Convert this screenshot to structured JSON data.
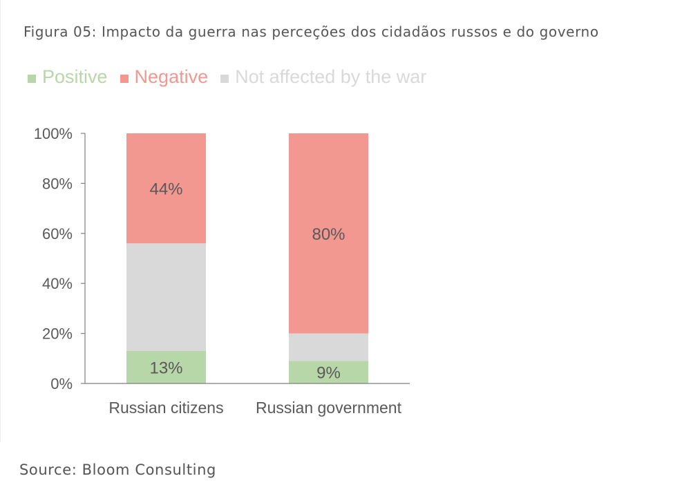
{
  "title": "Figura 05: Impacto da guerra nas perceções dos cidadãos russos e do governo",
  "source": "Source: Bloom Consulting",
  "legend": [
    {
      "label": "Positive",
      "color": "#b7d7a8"
    },
    {
      "label": "Negative",
      "color": "#f29891"
    },
    {
      "label": "Not affected by the war",
      "color": "#d9d9d9"
    }
  ],
  "chart_data": {
    "type": "bar",
    "stacked": true,
    "categories": [
      "Russian citizens",
      "Russian government"
    ],
    "series": [
      {
        "name": "Positive",
        "values": [
          13,
          9
        ],
        "color": "#b7d7a8",
        "data_labels": [
          "13%",
          "9%"
        ]
      },
      {
        "name": "Not affected by the war",
        "values": [
          43,
          11
        ],
        "color": "#d9d9d9",
        "data_labels": [
          "",
          ""
        ]
      },
      {
        "name": "Negative",
        "values": [
          44,
          80
        ],
        "color": "#f29891",
        "data_labels": [
          "44%",
          "80%"
        ]
      }
    ],
    "ylim": [
      0,
      100
    ],
    "yticks": [
      "0%",
      "20%",
      "40%",
      "60%",
      "80%",
      "100%"
    ],
    "ytick_values": [
      0,
      20,
      40,
      60,
      80,
      100
    ],
    "grid": false,
    "legend_position": "top-left"
  }
}
